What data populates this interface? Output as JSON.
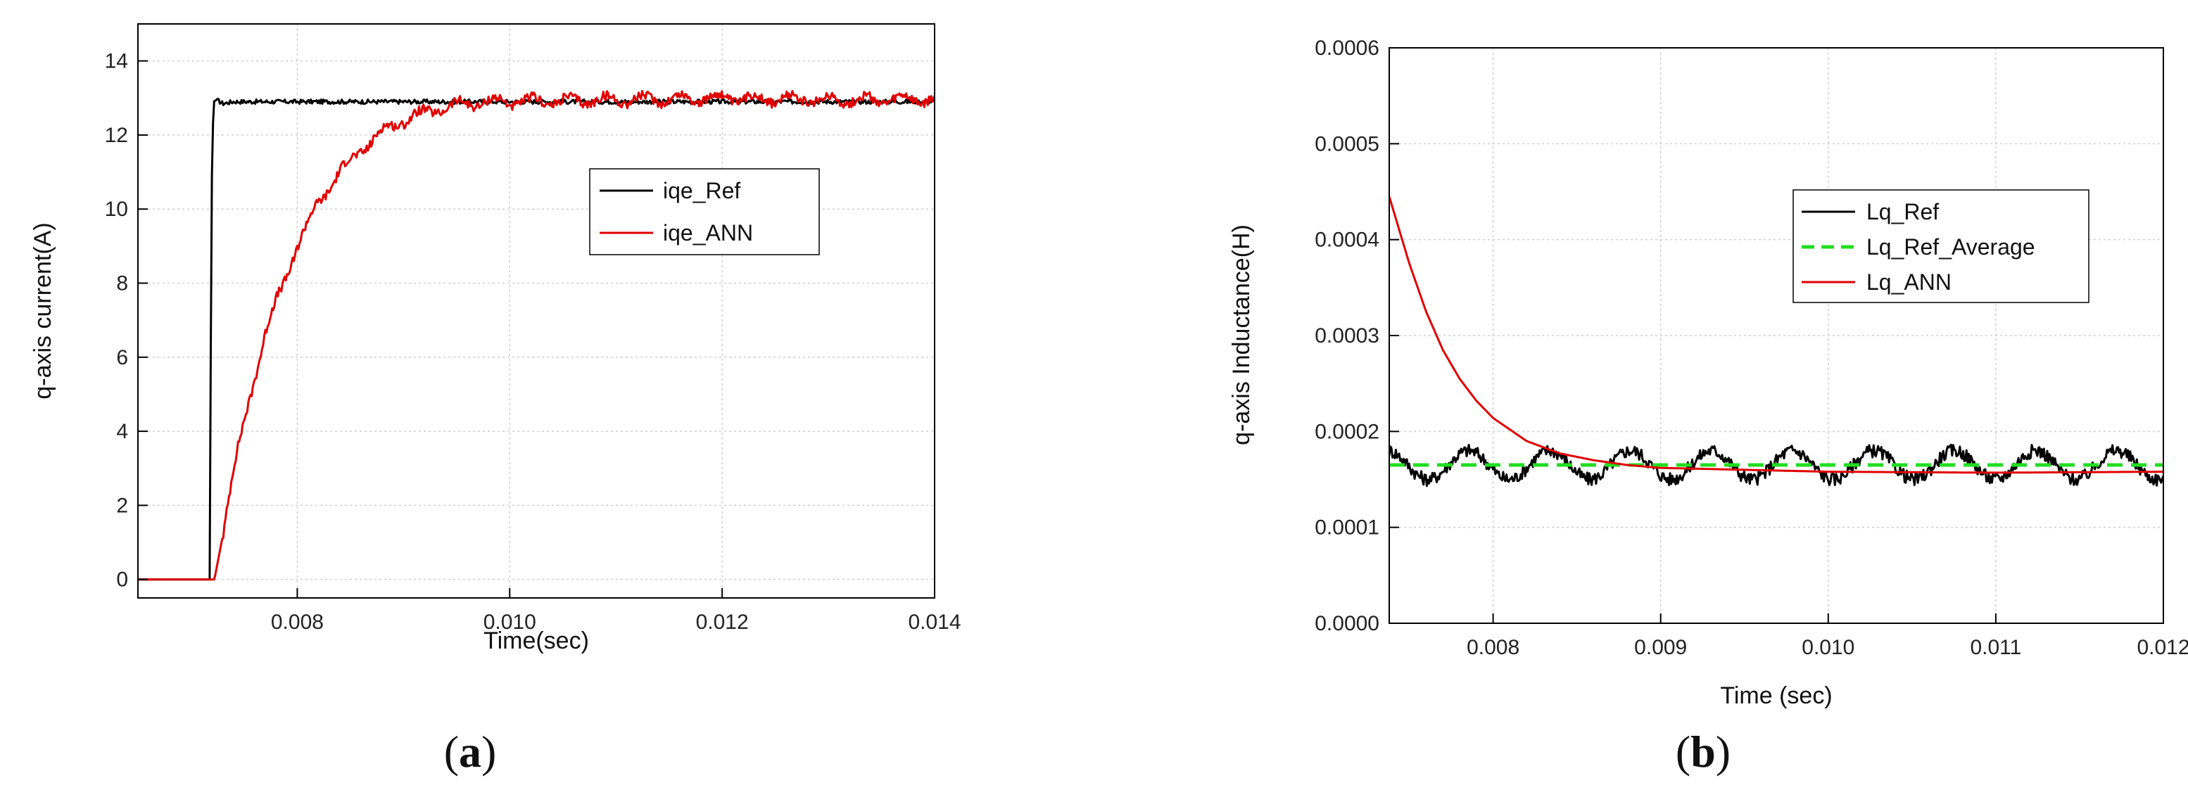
{
  "chart_data": [
    {
      "panel_label": "(a)",
      "panel_bold": "a",
      "type": "line",
      "title": "",
      "xlabel": "Time(sec)",
      "ylabel": "q-axis current(A)",
      "xlim": [
        0.0065,
        0.014
      ],
      "ylim": [
        -0.5,
        15
      ],
      "x_ticks": [
        0.008,
        0.01,
        0.012,
        0.014
      ],
      "x_tick_labels": [
        "0.008",
        "0.010",
        "0.012",
        "0.014"
      ],
      "y_ticks": [
        0,
        2,
        4,
        6,
        8,
        10,
        12,
        14
      ],
      "y_tick_labels": [
        "0",
        "2",
        "4",
        "6",
        "8",
        "10",
        "12",
        "14"
      ],
      "grid": true,
      "legend_position": "upper-middle",
      "series": [
        {
          "name": "iqe_Ref",
          "color": "#000000",
          "x": [
            0.0065,
            0.00718,
            0.00719,
            0.0072,
            0.00721,
            0.00724,
            0.0073,
            0.0074,
            0.008,
            0.009,
            0.01,
            0.011,
            0.012,
            0.013,
            0.014
          ],
          "y": [
            0,
            0,
            10.9,
            10.9,
            12.9,
            12.95,
            12.85,
            12.9,
            12.9,
            12.9,
            12.9,
            12.9,
            12.9,
            12.9,
            12.9
          ]
        },
        {
          "name": "iqe_ANN",
          "color": "#e00000",
          "x": [
            0.0065,
            0.00722,
            0.0073,
            0.0074,
            0.0075,
            0.0076,
            0.0077,
            0.0078,
            0.008,
            0.0082,
            0.0084,
            0.0086,
            0.0088,
            0.009,
            0.0092,
            0.0094,
            0.0096,
            0.0098,
            0.01,
            0.011,
            0.012,
            0.013,
            0.014
          ],
          "y": [
            0,
            0,
            1.2,
            2.9,
            4.3,
            5.5,
            6.6,
            7.5,
            9.0,
            10.2,
            11.0,
            11.6,
            12.1,
            12.4,
            12.6,
            12.75,
            12.85,
            12.9,
            12.9,
            12.95,
            13.0,
            12.95,
            12.95
          ]
        }
      ]
    },
    {
      "panel_label": "(b)",
      "panel_bold": "b",
      "type": "line",
      "title": "",
      "xlabel": "Time (sec)",
      "ylabel": "q-axis Inductance(H)",
      "xlim": [
        0.00738,
        0.012
      ],
      "ylim": [
        0,
        0.0006
      ],
      "x_ticks": [
        0.008,
        0.009,
        0.01,
        0.011,
        0.012
      ],
      "x_tick_labels": [
        "0.008",
        "0.009",
        "0.010",
        "0.011",
        "0.012"
      ],
      "y_ticks": [
        0,
        0.0001,
        0.0002,
        0.0003,
        0.0004,
        0.0005,
        0.0006
      ],
      "y_tick_labels": [
        "0.0000",
        "0.0001",
        "0.0002",
        "0.0003",
        "0.0004",
        "0.0005",
        "0.0006"
      ],
      "grid": true,
      "legend_position": "right-middle",
      "series": [
        {
          "name": "Lq_Ref",
          "color": "#000000",
          "x": [
            0.00738,
            0.012
          ],
          "y": [
            0.000165,
            0.000165
          ]
        },
        {
          "name": "Lq_Ref_Average",
          "color": "#22dd22",
          "x": [
            0.00738,
            0.012
          ],
          "y": [
            0.000165,
            0.000165
          ]
        },
        {
          "name": "Lq_ANN",
          "color": "#e00000",
          "x": [
            0.00738,
            0.0075,
            0.0076,
            0.0077,
            0.0078,
            0.0079,
            0.008,
            0.0082,
            0.0084,
            0.0086,
            0.0088,
            0.009,
            0.0095,
            0.01,
            0.011,
            0.012
          ],
          "y": [
            0.000445,
            0.000375,
            0.000325,
            0.000285,
            0.000255,
            0.000232,
            0.000214,
            0.00019,
            0.000177,
            0.00017,
            0.000165,
            0.000162,
            0.00016,
            0.000158,
            0.000157,
            0.000158
          ]
        }
      ]
    }
  ]
}
